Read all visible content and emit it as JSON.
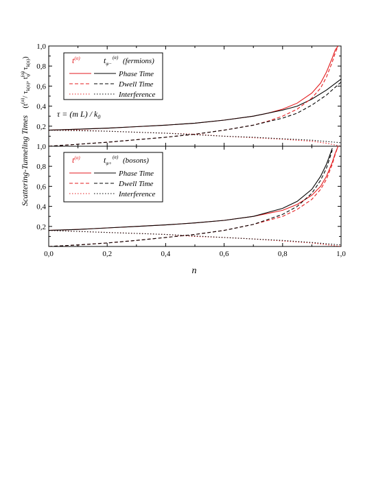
{
  "figure": {
    "ylabel_main": "Scattering-Tunneling Times",
    "ylabel_formula": "(t^(α)/τ_{k(n)}, t_φ^(α)/τ_{k(n)})",
    "xlabel": "n"
  },
  "chart_data": [
    {
      "type": "line",
      "panel": "top",
      "xlim": [
        0,
        1
      ],
      "ylim": [
        0,
        1
      ],
      "xticks": [
        "0,0",
        "0,2",
        "0,4",
        "0,6",
        "0,8",
        "1,0"
      ],
      "yticks": [
        "0,2",
        "0,4",
        "0,6",
        "0,8",
        "1,0"
      ],
      "legend_header": {
        "red": "t^(α)",
        "black": "t_φ−^(α)",
        "label": "(fermions)"
      },
      "legend_entries": [
        "Phase Time",
        "Dwell Time",
        "Interference"
      ],
      "annotation": "τ = (m L) / k₀",
      "series": [
        {
          "name": "Phase Time",
          "color": "#e31a1c",
          "style": "solid",
          "x": [
            0,
            0.1,
            0.2,
            0.3,
            0.4,
            0.5,
            0.6,
            0.7,
            0.75,
            0.8,
            0.85,
            0.9,
            0.93,
            0.95,
            0.97,
            0.98,
            0.99
          ],
          "y": [
            0.16,
            0.17,
            0.18,
            0.195,
            0.21,
            0.23,
            0.26,
            0.3,
            0.33,
            0.37,
            0.43,
            0.53,
            0.63,
            0.74,
            0.88,
            0.96,
            1.0
          ]
        },
        {
          "name": "Phase Time",
          "color": "#000000",
          "style": "solid",
          "x": [
            0,
            0.1,
            0.2,
            0.3,
            0.4,
            0.5,
            0.6,
            0.7,
            0.8,
            0.85,
            0.9,
            0.95,
            1.0
          ],
          "y": [
            0.16,
            0.17,
            0.18,
            0.195,
            0.21,
            0.23,
            0.26,
            0.3,
            0.36,
            0.4,
            0.47,
            0.56,
            0.67
          ]
        },
        {
          "name": "Dwell Time",
          "color": "#e31a1c",
          "style": "dashed",
          "x": [
            0,
            0.1,
            0.2,
            0.3,
            0.4,
            0.5,
            0.6,
            0.7,
            0.75,
            0.8,
            0.85,
            0.9,
            0.93,
            0.95,
            0.97,
            0.98,
            0.99
          ],
          "y": [
            0.0,
            0.02,
            0.04,
            0.065,
            0.09,
            0.12,
            0.16,
            0.21,
            0.25,
            0.3,
            0.37,
            0.48,
            0.58,
            0.69,
            0.84,
            0.93,
            1.0
          ]
        },
        {
          "name": "Dwell Time",
          "color": "#000000",
          "style": "dashed",
          "x": [
            0,
            0.1,
            0.2,
            0.3,
            0.4,
            0.5,
            0.6,
            0.7,
            0.8,
            0.85,
            0.9,
            0.95,
            1.0
          ],
          "y": [
            0.0,
            0.02,
            0.04,
            0.065,
            0.09,
            0.12,
            0.16,
            0.21,
            0.28,
            0.33,
            0.41,
            0.51,
            0.64
          ]
        },
        {
          "name": "Interference",
          "color": "#e31a1c",
          "style": "dotted",
          "x": [
            0,
            0.1,
            0.2,
            0.3,
            0.4,
            0.5,
            0.6,
            0.7,
            0.8,
            0.9,
            0.95,
            1.0
          ],
          "y": [
            0.16,
            0.16,
            0.15,
            0.14,
            0.13,
            0.12,
            0.1,
            0.085,
            0.07,
            0.05,
            0.03,
            0.0
          ]
        },
        {
          "name": "Interference",
          "color": "#000000",
          "style": "dotted",
          "x": [
            0,
            0.1,
            0.2,
            0.3,
            0.4,
            0.5,
            0.6,
            0.7,
            0.8,
            0.9,
            1.0
          ],
          "y": [
            0.16,
            0.155,
            0.15,
            0.14,
            0.13,
            0.115,
            0.1,
            0.09,
            0.075,
            0.06,
            0.035
          ]
        }
      ]
    },
    {
      "type": "line",
      "panel": "bottom",
      "xlim": [
        0,
        1
      ],
      "ylim": [
        0,
        1
      ],
      "xticks": [
        "0,0",
        "0,2",
        "0,4",
        "0,6",
        "0,8",
        "1,0"
      ],
      "yticks": [
        "0,2",
        "0,4",
        "0,6",
        "0,8",
        "1,0"
      ],
      "legend_header": {
        "red": "t^(α)",
        "black": "t_φ+^(α)",
        "label": "(bosons)"
      },
      "legend_entries": [
        "Phase Time",
        "Dwell Time",
        "Interference"
      ],
      "series": [
        {
          "name": "Phase Time",
          "color": "#e31a1c",
          "style": "solid",
          "x": [
            0,
            0.1,
            0.2,
            0.3,
            0.4,
            0.5,
            0.6,
            0.7,
            0.8,
            0.85,
            0.9,
            0.93,
            0.95,
            0.97,
            0.98,
            0.99
          ],
          "y": [
            0.16,
            0.17,
            0.185,
            0.2,
            0.215,
            0.235,
            0.26,
            0.3,
            0.36,
            0.42,
            0.51,
            0.6,
            0.7,
            0.84,
            0.93,
            1.0
          ]
        },
        {
          "name": "Phase Time",
          "color": "#000000",
          "style": "solid",
          "x": [
            0,
            0.1,
            0.2,
            0.3,
            0.4,
            0.5,
            0.6,
            0.7,
            0.8,
            0.85,
            0.9,
            0.93,
            0.95,
            0.96,
            0.97
          ],
          "y": [
            0.16,
            0.17,
            0.185,
            0.2,
            0.215,
            0.235,
            0.26,
            0.3,
            0.38,
            0.45,
            0.57,
            0.7,
            0.82,
            0.9,
            0.98
          ]
        },
        {
          "name": "Dwell Time",
          "color": "#e31a1c",
          "style": "dashed",
          "x": [
            0,
            0.1,
            0.2,
            0.3,
            0.4,
            0.5,
            0.6,
            0.7,
            0.8,
            0.85,
            0.9,
            0.93,
            0.95,
            0.97,
            0.98,
            0.99
          ],
          "y": [
            0.0,
            0.015,
            0.035,
            0.06,
            0.09,
            0.12,
            0.16,
            0.22,
            0.3,
            0.37,
            0.47,
            0.57,
            0.67,
            0.82,
            0.92,
            1.0
          ]
        },
        {
          "name": "Dwell Time",
          "color": "#000000",
          "style": "dashed",
          "x": [
            0,
            0.1,
            0.2,
            0.3,
            0.4,
            0.5,
            0.6,
            0.7,
            0.8,
            0.85,
            0.9,
            0.93,
            0.95,
            0.96,
            0.97
          ],
          "y": [
            0.0,
            0.015,
            0.035,
            0.06,
            0.09,
            0.12,
            0.16,
            0.22,
            0.32,
            0.4,
            0.53,
            0.66,
            0.78,
            0.87,
            0.96
          ]
        },
        {
          "name": "Interference",
          "color": "#e31a1c",
          "style": "dotted",
          "x": [
            0,
            0.1,
            0.2,
            0.3,
            0.4,
            0.5,
            0.6,
            0.7,
            0.8,
            0.9,
            1.0
          ],
          "y": [
            0.16,
            0.15,
            0.14,
            0.13,
            0.12,
            0.1,
            0.09,
            0.075,
            0.055,
            0.035,
            0.0
          ]
        },
        {
          "name": "Interference",
          "color": "#000000",
          "style": "dotted",
          "x": [
            0,
            0.1,
            0.2,
            0.3,
            0.4,
            0.5,
            0.6,
            0.7,
            0.8,
            0.9,
            1.0
          ],
          "y": [
            0.16,
            0.15,
            0.14,
            0.13,
            0.12,
            0.105,
            0.09,
            0.075,
            0.06,
            0.04,
            0.015
          ]
        }
      ]
    }
  ]
}
